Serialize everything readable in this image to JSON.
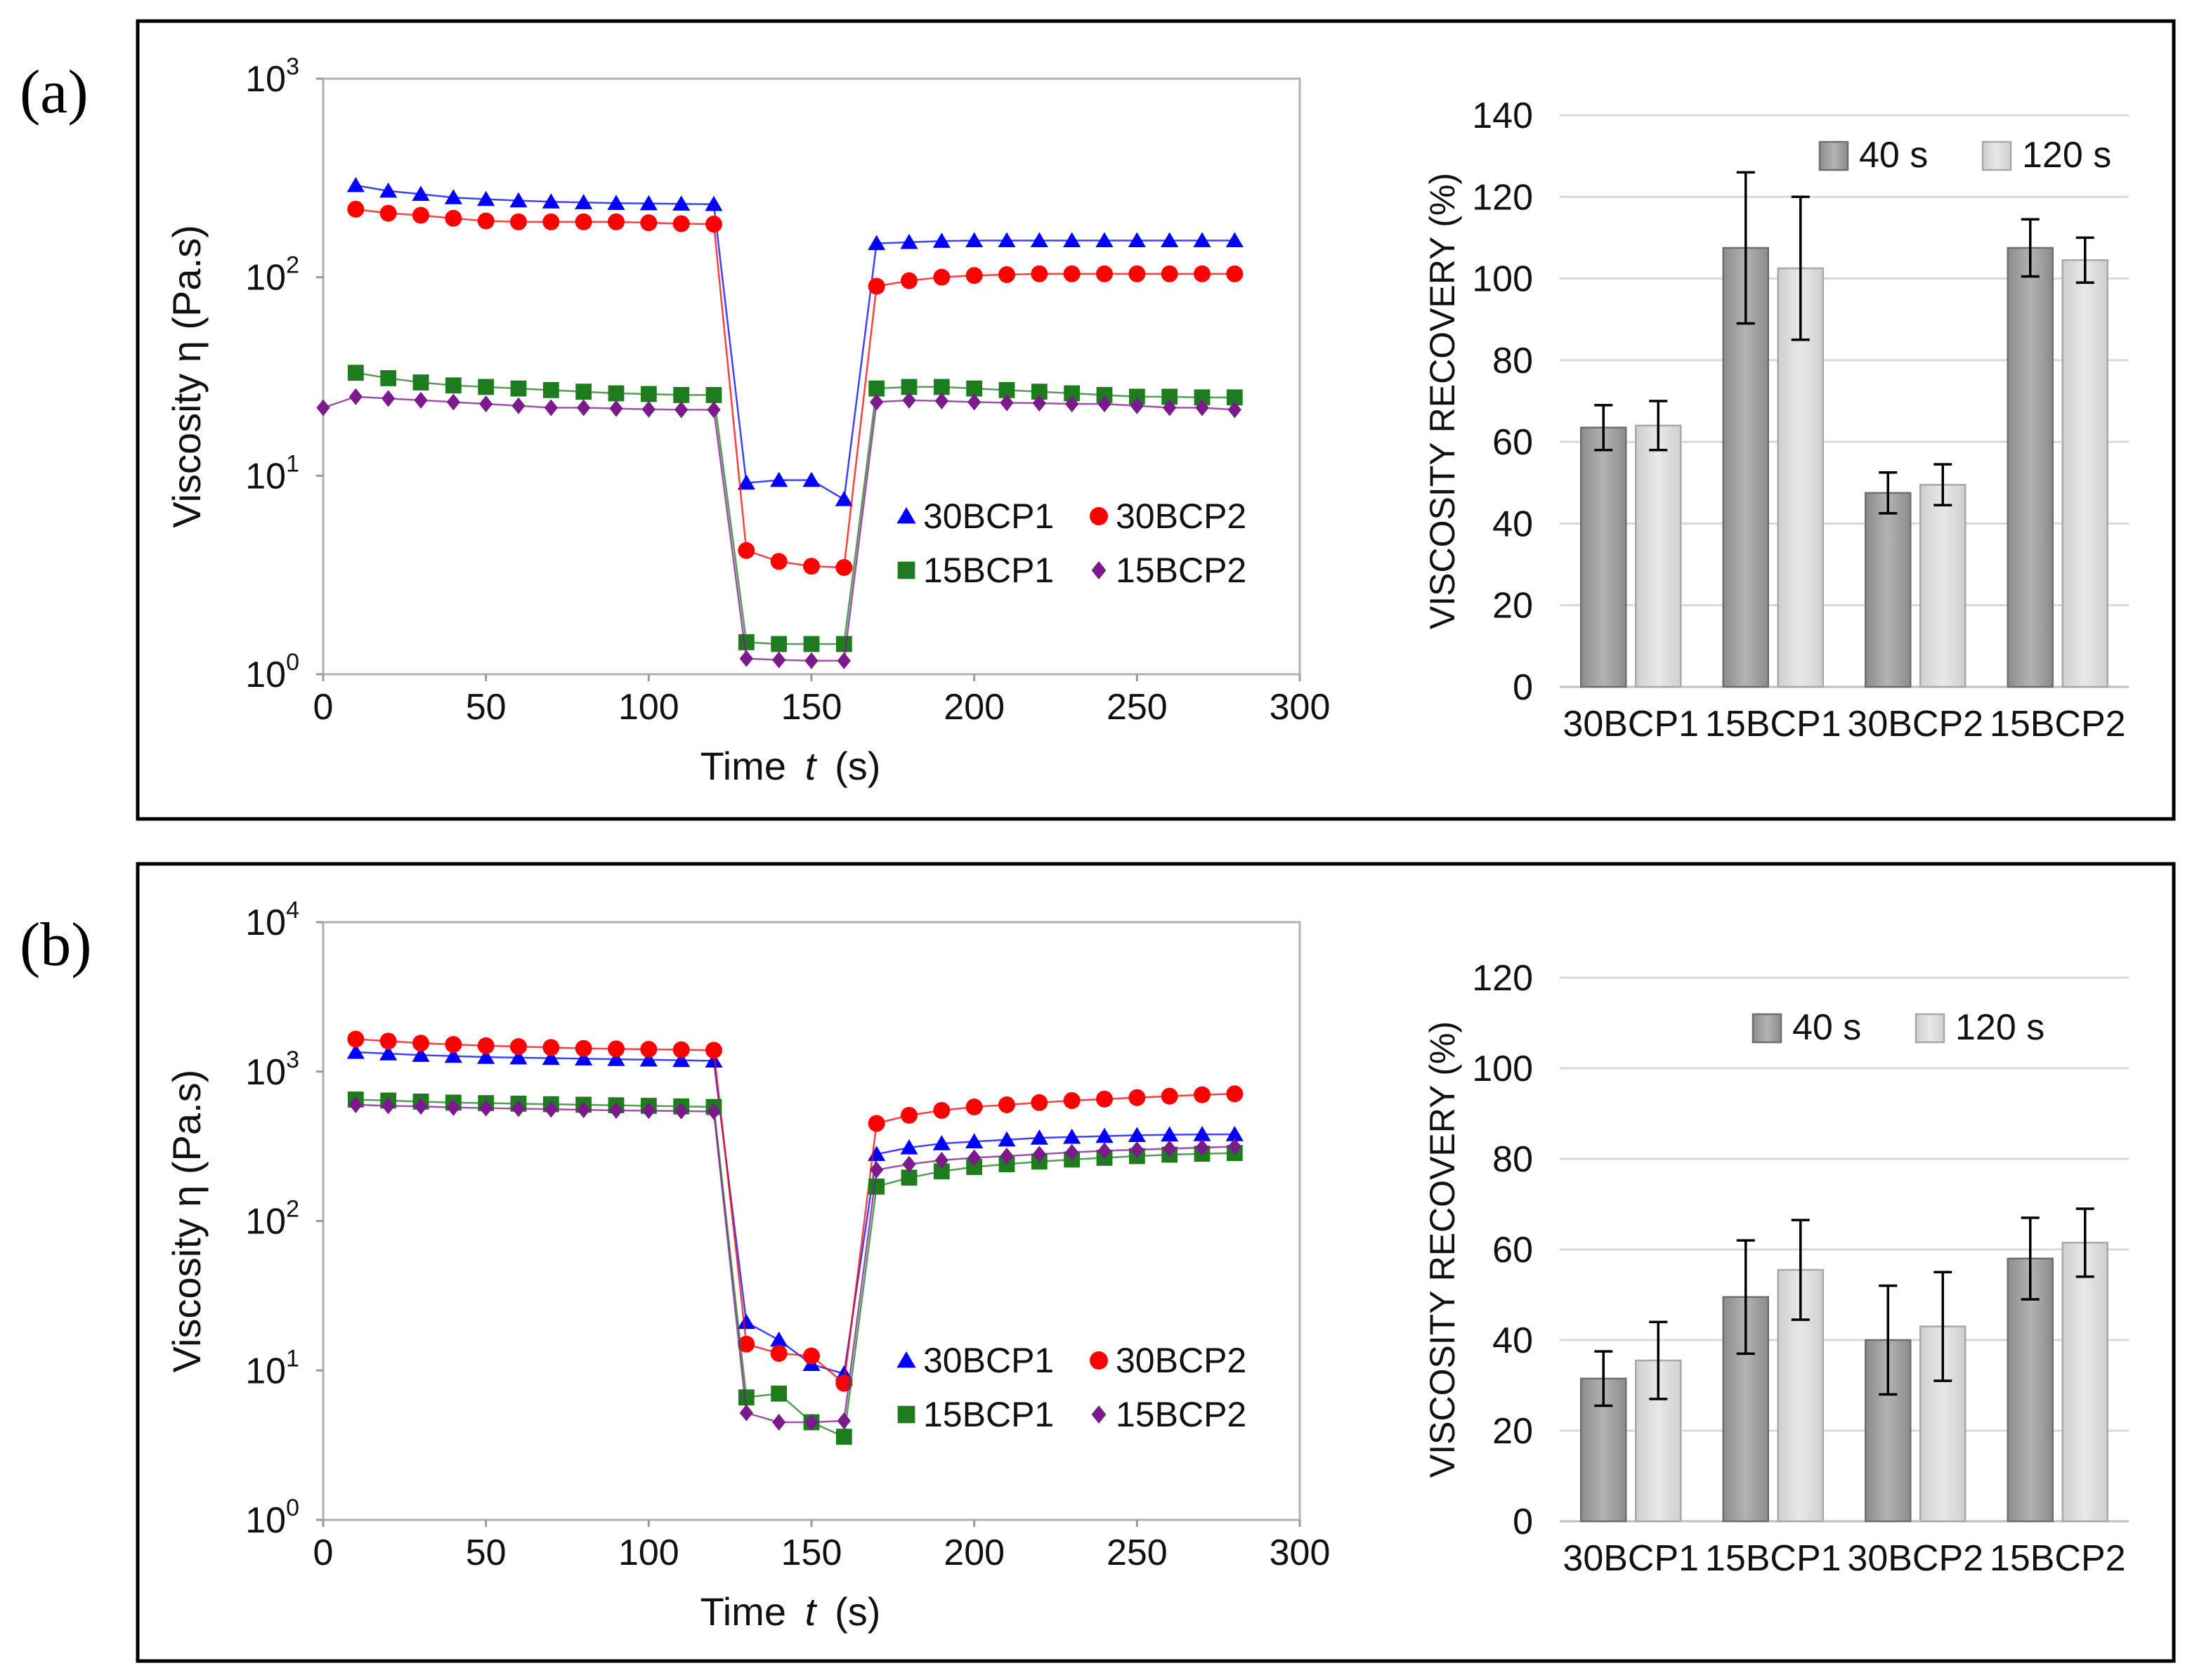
{
  "chart_data": [
    {
      "panel": "(a)",
      "type": "line",
      "scale": "log",
      "xlabel_main": "Time",
      "xlabel_var": "t",
      "xlabel_unit": "(s)",
      "ylabel": "Viscosity η (Pa.s)",
      "xlim": [
        0,
        300
      ],
      "xticks": [
        0,
        50,
        100,
        150,
        200,
        250,
        300
      ],
      "ylim": [
        1,
        1000
      ],
      "yticks": [
        {
          "base": "10",
          "exp": "0",
          "value": 1
        },
        {
          "base": "10",
          "exp": "1",
          "value": 10
        },
        {
          "base": "10",
          "exp": "2",
          "value": 100
        },
        {
          "base": "10",
          "exp": "3",
          "value": 1000
        }
      ],
      "series": [
        {
          "name": "30BCP1",
          "color": "#0000ff",
          "marker": "triangle",
          "x": [
            10,
            20,
            30,
            40,
            50,
            60,
            70,
            80,
            90,
            100,
            110,
            120,
            130,
            140,
            150,
            160,
            170,
            180,
            190,
            200,
            210,
            220,
            230,
            240,
            250,
            260,
            270,
            280
          ],
          "y": [
            290,
            272,
            262,
            252,
            247,
            243,
            240,
            238,
            236,
            235,
            234,
            233,
            9.2,
            9.5,
            9.5,
            7.6,
            148,
            150,
            152,
            153,
            153,
            153,
            153,
            153,
            153,
            153,
            153,
            153
          ]
        },
        {
          "name": "30BCP2",
          "color": "#ff0000",
          "marker": "circle",
          "x": [
            10,
            20,
            30,
            40,
            50,
            60,
            70,
            80,
            90,
            100,
            110,
            120,
            130,
            140,
            150,
            160,
            170,
            180,
            190,
            200,
            210,
            220,
            230,
            240,
            250,
            260,
            270,
            280
          ],
          "y": [
            220,
            210,
            205,
            198,
            192,
            190,
            190,
            190,
            190,
            188,
            186,
            185,
            4.2,
            3.7,
            3.5,
            3.45,
            90,
            96,
            100,
            102,
            103,
            104,
            104,
            104,
            104,
            104,
            104,
            104
          ]
        },
        {
          "name": "15BCP1",
          "color": "#1e7b1e",
          "marker": "square",
          "x": [
            10,
            20,
            30,
            40,
            50,
            60,
            70,
            80,
            90,
            100,
            110,
            120,
            130,
            140,
            150,
            160,
            170,
            180,
            190,
            200,
            210,
            220,
            230,
            240,
            250,
            260,
            270,
            280
          ],
          "y": [
            33,
            31,
            29.5,
            28.5,
            28,
            27.5,
            27,
            26.5,
            26,
            25.8,
            25.5,
            25.5,
            1.45,
            1.42,
            1.42,
            1.42,
            27.5,
            28,
            28,
            27.5,
            27,
            26.5,
            26,
            25.5,
            25,
            25,
            24.8,
            24.8
          ]
        },
        {
          "name": "15BCP2",
          "color": "#7b1a8a",
          "marker": "diamond",
          "x": [
            0,
            10,
            20,
            30,
            40,
            50,
            60,
            70,
            80,
            90,
            100,
            110,
            120,
            130,
            140,
            150,
            160,
            170,
            180,
            190,
            200,
            210,
            220,
            230,
            240,
            250,
            260,
            270,
            280
          ],
          "y": [
            22,
            25,
            24.5,
            24,
            23.5,
            23,
            22.5,
            22,
            22,
            21.8,
            21.6,
            21.5,
            21.5,
            1.2,
            1.18,
            1.17,
            1.17,
            23.5,
            24,
            23.8,
            23.5,
            23.3,
            23.2,
            23,
            23,
            22.5,
            22,
            22,
            21.5
          ]
        }
      ],
      "legend_position": "center-right"
    },
    {
      "panel": "(a)",
      "type": "bar",
      "ylabel": "VISCOSITY RECOVERY (%)",
      "ylim": [
        0,
        140
      ],
      "yticks": [
        0,
        20,
        40,
        60,
        80,
        100,
        120,
        140
      ],
      "categories": [
        "30BCP1",
        "15BCP1",
        "30BCP2",
        "15BCP2"
      ],
      "series": [
        {
          "name": "40 s",
          "color": "#a6a6a6",
          "values": [
            63.5,
            107.5,
            47.5,
            107.5
          ],
          "errors": [
            5.5,
            18.5,
            5.0,
            7.0
          ]
        },
        {
          "name": "120 s",
          "color": "#d9d9d9",
          "values": [
            64.0,
            102.5,
            49.5,
            104.5
          ],
          "errors": [
            6.0,
            17.5,
            5.0,
            5.5
          ]
        }
      ],
      "legend_position": "top-right"
    },
    {
      "panel": "(b)",
      "type": "line",
      "scale": "log",
      "xlabel_main": "Time",
      "xlabel_var": "t",
      "xlabel_unit": "(s)",
      "ylabel": "Viscosity η (Pa.s)",
      "xlim": [
        0,
        300
      ],
      "xticks": [
        0,
        50,
        100,
        150,
        200,
        250,
        300
      ],
      "ylim": [
        1,
        10000
      ],
      "yticks": [
        {
          "base": "10",
          "exp": "0",
          "value": 1
        },
        {
          "base": "10",
          "exp": "1",
          "value": 10
        },
        {
          "base": "10",
          "exp": "2",
          "value": 100
        },
        {
          "base": "10",
          "exp": "3",
          "value": 1000
        },
        {
          "base": "10",
          "exp": "4",
          "value": 10000
        }
      ],
      "series": [
        {
          "name": "30BCP1",
          "color": "#0000ff",
          "marker": "triangle",
          "x": [
            10,
            20,
            30,
            40,
            50,
            60,
            70,
            80,
            90,
            100,
            110,
            120,
            130,
            140,
            150,
            160,
            170,
            180,
            190,
            200,
            210,
            220,
            230,
            240,
            250,
            260,
            270,
            280
          ],
          "y": [
            1350,
            1320,
            1290,
            1270,
            1250,
            1240,
            1230,
            1220,
            1210,
            1200,
            1190,
            1180,
            21,
            16,
            11,
            9.5,
            280,
            310,
            330,
            340,
            350,
            360,
            365,
            370,
            375,
            378,
            380,
            380
          ]
        },
        {
          "name": "30BCP2",
          "color": "#ff0000",
          "marker": "circle",
          "x": [
            10,
            20,
            30,
            40,
            50,
            60,
            70,
            80,
            90,
            100,
            110,
            120,
            130,
            140,
            150,
            160,
            170,
            180,
            190,
            200,
            210,
            220,
            230,
            240,
            250,
            260,
            270,
            280
          ],
          "y": [
            1650,
            1600,
            1550,
            1520,
            1490,
            1470,
            1450,
            1430,
            1420,
            1410,
            1400,
            1390,
            15,
            13,
            12.5,
            8.2,
            450,
            510,
            550,
            580,
            600,
            620,
            640,
            655,
            670,
            685,
            700,
            710
          ]
        },
        {
          "name": "15BCP1",
          "color": "#1e7b1e",
          "marker": "square",
          "x": [
            10,
            20,
            30,
            40,
            50,
            60,
            70,
            80,
            90,
            100,
            110,
            120,
            130,
            140,
            150,
            160,
            170,
            180,
            190,
            200,
            210,
            220,
            230,
            240,
            250,
            260,
            270,
            280
          ],
          "y": [
            650,
            640,
            630,
            620,
            615,
            610,
            605,
            600,
            595,
            590,
            585,
            580,
            6.6,
            7.0,
            4.5,
            3.6,
            170,
            195,
            215,
            230,
            240,
            250,
            258,
            265,
            272,
            278,
            282,
            285
          ]
        },
        {
          "name": "15BCP2",
          "color": "#7b1a8a",
          "marker": "diamond",
          "x": [
            10,
            20,
            30,
            40,
            50,
            60,
            70,
            80,
            90,
            100,
            110,
            120,
            130,
            140,
            150,
            160,
            170,
            180,
            190,
            200,
            210,
            220,
            230,
            240,
            250,
            260,
            270,
            280
          ],
          "y": [
            600,
            590,
            585,
            575,
            570,
            565,
            560,
            555,
            550,
            548,
            545,
            540,
            5.2,
            4.5,
            4.5,
            4.6,
            220,
            240,
            255,
            265,
            272,
            280,
            288,
            295,
            300,
            305,
            310,
            315
          ]
        }
      ],
      "legend_position": "center-right"
    },
    {
      "panel": "(b)",
      "type": "bar",
      "ylabel": "VISCOSITY RECOVERY (%)",
      "ylim": [
        0,
        120
      ],
      "yticks": [
        0,
        20,
        40,
        60,
        80,
        100,
        120
      ],
      "categories": [
        "30BCP1",
        "15BCP1",
        "30BCP2",
        "15BCP2"
      ],
      "series": [
        {
          "name": "40 s",
          "color": "#a6a6a6",
          "values": [
            31.5,
            49.5,
            40.0,
            58.0
          ],
          "errors": [
            6.0,
            12.5,
            12.0,
            9.0
          ]
        },
        {
          "name": "120 s",
          "color": "#d9d9d9",
          "values": [
            35.5,
            55.5,
            43.0,
            61.5
          ],
          "errors": [
            8.5,
            11.0,
            12.0,
            7.5
          ]
        }
      ],
      "legend_position": "top-right"
    }
  ]
}
